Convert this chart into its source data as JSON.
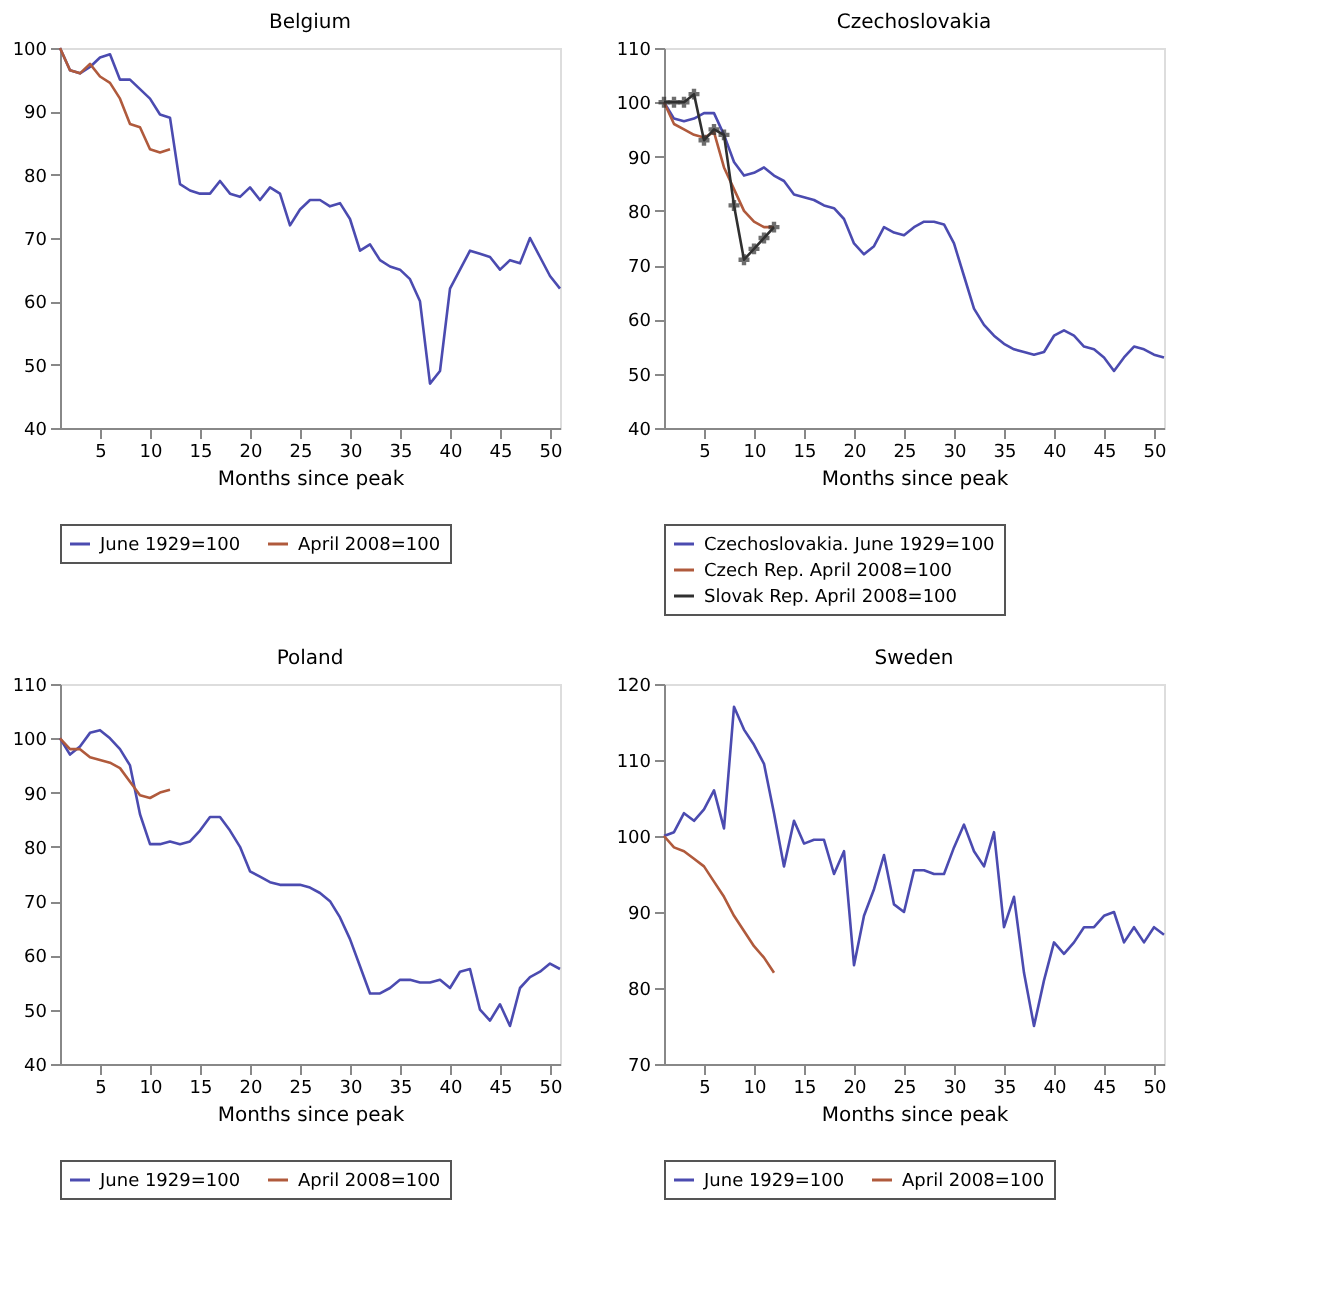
{
  "chart_data": [
    {
      "type": "line",
      "title": "Belgium",
      "xlabel": "Months since peak",
      "xlim": [
        1,
        51
      ],
      "xticks": [
        5,
        10,
        15,
        20,
        25,
        30,
        35,
        40,
        45,
        50
      ],
      "ylim": [
        40,
        100
      ],
      "yticks": [
        40,
        50,
        60,
        70,
        80,
        90,
        100
      ],
      "legend": "bottom",
      "grid": false,
      "series": [
        {
          "name": "June 1929=100",
          "color": "#4b4bb0",
          "x": [
            1,
            2,
            3,
            4,
            5,
            6,
            7,
            8,
            9,
            10,
            11,
            12,
            13,
            14,
            15,
            16,
            17,
            18,
            19,
            20,
            21,
            22,
            23,
            24,
            25,
            26,
            27,
            28,
            29,
            30,
            31,
            32,
            33,
            34,
            35,
            36,
            37,
            38,
            39,
            40,
            41,
            42,
            43,
            44,
            45,
            46,
            47,
            48,
            49,
            50,
            51
          ],
          "values": [
            100,
            96.5,
            96,
            97,
            98.5,
            99,
            95,
            95,
            93.5,
            92,
            89.5,
            89,
            78.5,
            77.5,
            77,
            77,
            79,
            77,
            76.5,
            78,
            76,
            78,
            77,
            72,
            74.5,
            76,
            76,
            75,
            75.5,
            73,
            68,
            69,
            66.5,
            65.5,
            65,
            63.5,
            60,
            47,
            49,
            62,
            65,
            68,
            67.5,
            67,
            65,
            66.5,
            66,
            70,
            67,
            64,
            62
          ]
        },
        {
          "name": "April 2008=100",
          "color": "#b05a3c",
          "x": [
            1,
            2,
            3,
            4,
            5,
            6,
            7,
            8,
            9,
            10,
            11,
            12
          ],
          "values": [
            100,
            96.5,
            96,
            97.5,
            95.5,
            94.5,
            92,
            88,
            87.5,
            84,
            83.5,
            84
          ]
        }
      ]
    },
    {
      "type": "line",
      "title": "Czechoslovakia",
      "xlabel": "Months since peak",
      "xlim": [
        1,
        51
      ],
      "xticks": [
        5,
        10,
        15,
        20,
        25,
        30,
        35,
        40,
        45,
        50
      ],
      "ylim": [
        40,
        110
      ],
      "yticks": [
        40,
        50,
        60,
        70,
        80,
        90,
        100,
        110
      ],
      "legend": "bottom",
      "grid": false,
      "series": [
        {
          "name": "Czechoslovakia. June 1929=100",
          "color": "#4b4bb0",
          "x": [
            1,
            2,
            3,
            4,
            5,
            6,
            7,
            8,
            9,
            10,
            11,
            12,
            13,
            14,
            15,
            16,
            17,
            18,
            19,
            20,
            21,
            22,
            23,
            24,
            25,
            26,
            27,
            28,
            29,
            30,
            31,
            32,
            33,
            34,
            35,
            36,
            37,
            38,
            39,
            40,
            41,
            42,
            43,
            44,
            45,
            46,
            47,
            48,
            49,
            50,
            51
          ],
          "values": [
            100,
            97,
            96.5,
            97,
            98,
            98,
            94,
            89,
            86.5,
            87,
            88,
            86.5,
            85.5,
            83,
            82.5,
            82,
            81,
            80.5,
            78.5,
            74,
            72,
            73.5,
            77,
            76,
            75.5,
            77,
            78,
            78,
            77.5,
            74,
            68,
            62,
            59,
            57,
            55.5,
            54.5,
            54,
            53.5,
            54,
            57,
            58,
            57,
            55,
            54.5,
            53,
            50.5,
            53,
            55,
            54.5,
            53.5,
            53
          ]
        },
        {
          "name": "Czech Rep. April 2008=100",
          "color": "#b05a3c",
          "x": [
            1,
            2,
            3,
            4,
            5,
            6,
            7,
            8,
            9,
            10,
            11,
            12
          ],
          "values": [
            100,
            96,
            95,
            94,
            93.5,
            94.5,
            88,
            84,
            80,
            78,
            77,
            77
          ]
        },
        {
          "name": "Slovak Rep. April 2008=100",
          "color": "#303030",
          "marker": "cross",
          "x": [
            1,
            2,
            3,
            4,
            5,
            6,
            7,
            8,
            9,
            10,
            11,
            12
          ],
          "values": [
            100,
            100,
            100,
            101.5,
            93,
            95,
            94,
            81,
            71,
            73,
            75,
            77
          ]
        }
      ]
    },
    {
      "type": "line",
      "title": "Poland",
      "xlabel": "Months since peak",
      "xlim": [
        1,
        51
      ],
      "xticks": [
        5,
        10,
        15,
        20,
        25,
        30,
        35,
        40,
        45,
        50
      ],
      "ylim": [
        40,
        110
      ],
      "yticks": [
        40,
        50,
        60,
        70,
        80,
        90,
        100,
        110
      ],
      "legend": "bottom",
      "grid": false,
      "series": [
        {
          "name": "June 1929=100",
          "color": "#4b4bb0",
          "x": [
            1,
            2,
            3,
            4,
            5,
            6,
            7,
            8,
            9,
            10,
            11,
            12,
            13,
            14,
            15,
            16,
            17,
            18,
            19,
            20,
            21,
            22,
            23,
            24,
            25,
            26,
            27,
            28,
            29,
            30,
            31,
            32,
            33,
            34,
            35,
            36,
            37,
            38,
            39,
            40,
            41,
            42,
            43,
            44,
            45,
            46,
            47,
            48,
            49,
            50,
            51
          ],
          "values": [
            100,
            97,
            98.5,
            101,
            101.5,
            100,
            98,
            95,
            86,
            80.5,
            80.5,
            81,
            80.5,
            81,
            83,
            85.5,
            85.5,
            83,
            80,
            75.5,
            74.5,
            73.5,
            73,
            73,
            73,
            72.5,
            71.5,
            70,
            67,
            63,
            58,
            53,
            53,
            54,
            55.5,
            55.5,
            55,
            55,
            55.5,
            54,
            57,
            57.5,
            50,
            48,
            51,
            47,
            54,
            56,
            57,
            58.5,
            57.5
          ]
        },
        {
          "name": "April 2008=100",
          "color": "#b05a3c",
          "x": [
            1,
            2,
            3,
            4,
            5,
            6,
            7,
            8,
            9,
            10,
            11,
            12
          ],
          "values": [
            100,
            98,
            98,
            96.5,
            96,
            95.5,
            94.5,
            92,
            89.5,
            89,
            90,
            90.5
          ]
        }
      ]
    },
    {
      "type": "line",
      "title": "Sweden",
      "xlabel": "Months since peak",
      "xlim": [
        1,
        51
      ],
      "xticks": [
        5,
        10,
        15,
        20,
        25,
        30,
        35,
        40,
        45,
        50
      ],
      "ylim": [
        70,
        120
      ],
      "yticks": [
        70,
        80,
        90,
        100,
        110,
        120
      ],
      "legend": "bottom",
      "grid": false,
      "series": [
        {
          "name": "June 1929=100",
          "color": "#4b4bb0",
          "x": [
            1,
            2,
            3,
            4,
            5,
            6,
            7,
            8,
            9,
            10,
            11,
            12,
            13,
            14,
            15,
            16,
            17,
            18,
            19,
            20,
            21,
            22,
            23,
            24,
            25,
            26,
            27,
            28,
            29,
            30,
            31,
            32,
            33,
            34,
            35,
            36,
            37,
            38,
            39,
            40,
            41,
            42,
            43,
            44,
            45,
            46,
            47,
            48,
            49,
            50,
            51
          ],
          "values": [
            100,
            100.5,
            103,
            102,
            103.5,
            106,
            101,
            117,
            114,
            112,
            109.5,
            103,
            96,
            102,
            99,
            99.5,
            99.5,
            95,
            98,
            83,
            89.5,
            93,
            97.5,
            91,
            90,
            95.5,
            95.5,
            95,
            95,
            98.5,
            101.5,
            98,
            96,
            100.5,
            88,
            92,
            82,
            75,
            81,
            86,
            84.5,
            86,
            88,
            88,
            89.5,
            90,
            86,
            88,
            86,
            88,
            87
          ]
        },
        {
          "name": "April 2008=100",
          "color": "#b05a3c",
          "x": [
            1,
            2,
            3,
            4,
            5,
            6,
            7,
            8,
            9,
            10,
            11,
            12
          ],
          "values": [
            100,
            98.5,
            98,
            97,
            96,
            94,
            92,
            89.5,
            87.5,
            85.5,
            84,
            82
          ]
        }
      ]
    }
  ]
}
